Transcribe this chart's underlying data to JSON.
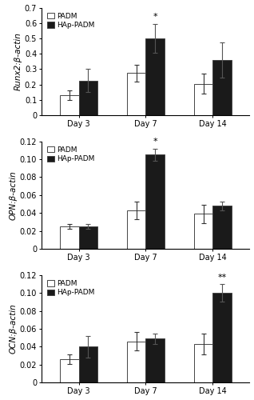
{
  "panels": [
    {
      "ylabel": "Runx2:β-actin",
      "ylim": [
        0,
        0.7
      ],
      "yticks": [
        0,
        0.1,
        0.2,
        0.3,
        0.4,
        0.5,
        0.6,
        0.7
      ],
      "ytick_labels": [
        "0",
        "0.1",
        "0.2",
        "0.3",
        "0.4",
        "0.5",
        "0.6",
        "0.7"
      ],
      "padm_values": [
        0.13,
        0.275,
        0.205
      ],
      "padm_errors": [
        0.03,
        0.055,
        0.065
      ],
      "hap_values": [
        0.225,
        0.5,
        0.36
      ],
      "hap_errors": [
        0.075,
        0.095,
        0.115
      ],
      "sig_labels": [
        "",
        "*",
        ""
      ],
      "sig_on_hap": [
        false,
        true,
        false
      ]
    },
    {
      "ylabel": "OPN:β-actin",
      "ylim": [
        0,
        0.12
      ],
      "yticks": [
        0,
        0.02,
        0.04,
        0.06,
        0.08,
        0.1,
        0.12
      ],
      "ytick_labels": [
        "0",
        "0.02",
        "0.04",
        "0.06",
        "0.08",
        "0.10",
        "0.12"
      ],
      "padm_values": [
        0.025,
        0.043,
        0.039
      ],
      "padm_errors": [
        0.003,
        0.01,
        0.01
      ],
      "hap_values": [
        0.025,
        0.105,
        0.048
      ],
      "hap_errors": [
        0.003,
        0.007,
        0.005
      ],
      "sig_labels": [
        "",
        "*",
        ""
      ],
      "sig_on_hap": [
        false,
        true,
        false
      ]
    },
    {
      "ylabel": "OCN:β-actin",
      "ylim": [
        0,
        0.12
      ],
      "yticks": [
        0,
        0.02,
        0.04,
        0.06,
        0.08,
        0.1,
        0.12
      ],
      "ytick_labels": [
        "0",
        "0.02",
        "0.04",
        "0.06",
        "0.08",
        "0.10",
        "0.12"
      ],
      "padm_values": [
        0.026,
        0.046,
        0.043
      ],
      "padm_errors": [
        0.005,
        0.01,
        0.012
      ],
      "hap_values": [
        0.04,
        0.049,
        0.1
      ],
      "hap_errors": [
        0.012,
        0.006,
        0.01
      ],
      "sig_labels": [
        "",
        "",
        "**"
      ],
      "sig_on_hap": [
        false,
        false,
        true
      ]
    }
  ],
  "categories": [
    "Day 3",
    "Day 7",
    "Day 14"
  ],
  "padm_color": "#ffffff",
  "hap_color": "#1a1a1a",
  "edge_color": "#444444",
  "bar_width": 0.28,
  "legend_labels": [
    "PADM",
    "HAp-PADM"
  ],
  "background_color": "#ffffff",
  "ylabel_fontsize": 7.5,
  "tick_fontsize": 7,
  "legend_fontsize": 6.5,
  "sig_fontsize": 8
}
